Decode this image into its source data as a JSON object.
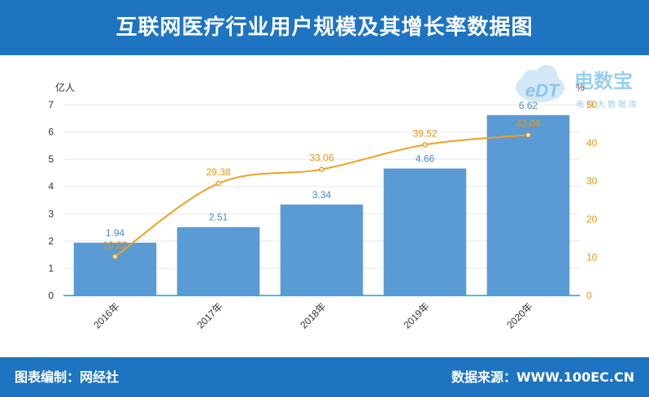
{
  "header": {
    "title": "互联网医疗行业用户规模及其增长率数据图"
  },
  "footer": {
    "left": "图表编制：网经社",
    "right": "数据来源：WWW.100EC.CN"
  },
  "watermark": {
    "logo_text": "eDT",
    "brand": "电数宝",
    "tagline": "电商大数据库"
  },
  "colors": {
    "bar": "#5b9bd5",
    "line": "#f0a020",
    "header_bg": "#1f74c2",
    "axis": "#333333",
    "grid": "#e8e8e8"
  },
  "chart_data": {
    "type": "bar",
    "categories": [
      "2016年",
      "2017年",
      "2018年",
      "2019年",
      "2020年"
    ],
    "series": [
      {
        "type": "bar",
        "axis": "left",
        "values": [
          1.94,
          2.51,
          3.34,
          4.66,
          6.62
        ]
      },
      {
        "type": "line",
        "axis": "right",
        "values": [
          10.22,
          29.38,
          33.06,
          39.52,
          42.06
        ]
      }
    ],
    "y_left": {
      "unit": "亿人",
      "min": 0,
      "max": 7,
      "ticks": [
        0,
        1,
        2,
        3,
        4,
        5,
        6,
        7
      ]
    },
    "y_right": {
      "unit": "%",
      "min": 0,
      "max": 50,
      "ticks": [
        0,
        10,
        20,
        30,
        40,
        50
      ]
    },
    "grid": true
  }
}
